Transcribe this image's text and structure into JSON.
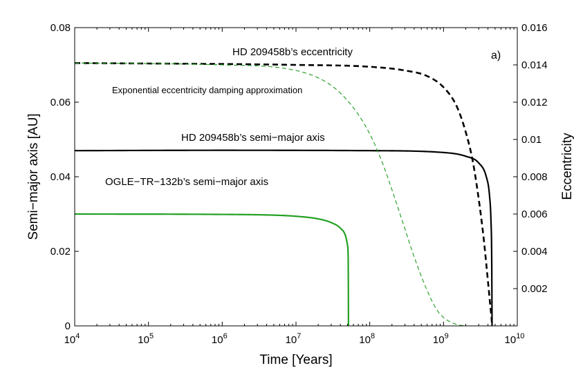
{
  "chart_data": {
    "type": "line",
    "panel_label": "a)",
    "xlabel": "Time [Years]",
    "ylabel_left": "Semi−major axis [AU]",
    "ylabel_right": "Eccentricity",
    "x_scale": "log",
    "xlim": [
      10000,
      10000000000
    ],
    "x_ticks": [
      {
        "base": "10",
        "exp": "4",
        "value": 10000
      },
      {
        "base": "10",
        "exp": "5",
        "value": 100000
      },
      {
        "base": "10",
        "exp": "6",
        "value": 1000000
      },
      {
        "base": "10",
        "exp": "7",
        "value": 10000000
      },
      {
        "base": "10",
        "exp": "8",
        "value": 100000000
      },
      {
        "base": "10",
        "exp": "9",
        "value": 1000000000
      },
      {
        "base": "10",
        "exp": "10",
        "value": 10000000000
      }
    ],
    "ylim_left": [
      0,
      0.08
    ],
    "y_ticks_left": [
      "0",
      "0.02",
      "0.04",
      "0.06",
      "0.08"
    ],
    "y_tick_values_left": [
      0,
      0.02,
      0.04,
      0.06,
      0.08
    ],
    "ylim_right": [
      0,
      0.016
    ],
    "y_ticks_right": [
      "0.002",
      "0.004",
      "0.006",
      "0.008",
      "0.01",
      "0.012",
      "0.014",
      "0.016"
    ],
    "y_tick_values_right": [
      0.002,
      0.004,
      0.006,
      0.008,
      0.01,
      0.012,
      0.014,
      0.016
    ],
    "annotations": [
      {
        "text": "HD 209458b’s eccentricity",
        "series": "hd_ecc"
      },
      {
        "text": "Exponential eccentricity damping approximation",
        "series": "exp_ecc"
      },
      {
        "text": "HD 209458b’s semi−major axis",
        "series": "hd_a"
      },
      {
        "text": "OGLE−TR−132b’s semi−major axis",
        "series": "ogle_a"
      }
    ],
    "series": [
      {
        "key": "hd_a",
        "name": "HD 209458b's semi-major axis",
        "axis": "left",
        "style": "solid",
        "color": "#000000",
        "x": [
          10000,
          1000000,
          100000000,
          1000000000,
          2000000000,
          3000000000,
          3800000000,
          4200000000,
          4400000000,
          4500000000,
          4550000000
        ],
        "y": [
          0.047,
          0.0471,
          0.047,
          0.0465,
          0.0455,
          0.0437,
          0.04,
          0.035,
          0.028,
          0.018,
          0
        ]
      },
      {
        "key": "hd_ecc",
        "name": "HD 209458b's eccentricity",
        "axis": "right",
        "style": "dashed",
        "color": "#000000",
        "x": [
          10000,
          10000000,
          100000000,
          300000000,
          600000000,
          1000000000,
          1500000000,
          2000000000,
          2500000000,
          3000000000,
          3500000000,
          4000000000,
          4300000000,
          4500000000,
          4550000000
        ],
        "y": [
          0.0141,
          0.014,
          0.0139,
          0.0137,
          0.0134,
          0.0128,
          0.0118,
          0.0104,
          0.0088,
          0.0068,
          0.0047,
          0.0024,
          0.0011,
          0.0003,
          0
        ]
      },
      {
        "key": "exp_ecc",
        "name": "Exponential eccentricity damping approximation",
        "axis": "right",
        "style": "dashed-thin",
        "color": "#2ca02c",
        "x": [
          10000,
          1000000,
          10000000,
          30000000,
          60000000,
          100000000,
          150000000,
          200000000,
          300000000,
          400000000,
          600000000,
          800000000,
          1000000000,
          1500000000,
          2000000000
        ],
        "y": [
          0.0141,
          0.014,
          0.0137,
          0.0129,
          0.0117,
          0.0103,
          0.0087,
          0.0073,
          0.0052,
          0.0037,
          0.0019,
          0.0009,
          0.00045,
          8e-05,
          0
        ]
      },
      {
        "key": "ogle_a",
        "name": "OGLE-TR-132b's semi-major axis",
        "axis": "left",
        "style": "solid",
        "color": "#22a022",
        "x": [
          10000,
          1000000,
          5000000,
          10000000,
          20000000,
          30000000,
          40000000,
          47000000,
          50000000,
          51000000,
          51500000
        ],
        "y": [
          0.03,
          0.0299,
          0.0297,
          0.0294,
          0.0287,
          0.0277,
          0.0262,
          0.0241,
          0.0215,
          0.018,
          0
        ]
      }
    ]
  }
}
